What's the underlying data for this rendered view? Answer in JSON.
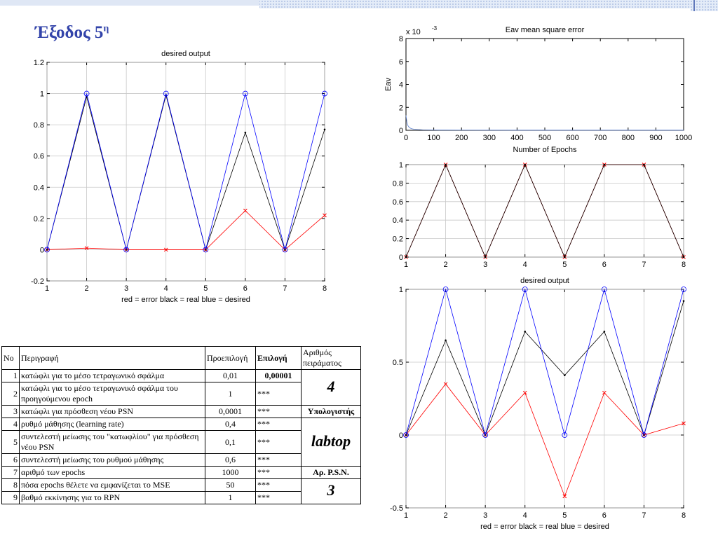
{
  "slide": {
    "title_main": "Έξοδος 5",
    "title_sup": "η"
  },
  "colors": {
    "error": "#ff0000",
    "real": "#000000",
    "desired": "#0000ff",
    "title": "#3344aa",
    "grid": "#c8c8c8",
    "mse_line": "#5a7fd0"
  },
  "chart_data": [
    {
      "type": "line",
      "title": "desired output",
      "xlabel": "red = error      black = real      blue = desired",
      "ylabel": "",
      "x": [
        1,
        2,
        3,
        4,
        5,
        6,
        7,
        8
      ],
      "xlim": [
        1,
        8
      ],
      "ylim": [
        -0.2,
        1.2
      ],
      "xticks": [
        "1",
        "2",
        "3",
        "4",
        "5",
        "6",
        "7",
        "8"
      ],
      "yticks": [
        "-0.2",
        "0",
        "0.2",
        "0.4",
        "0.6",
        "0.8",
        "1",
        "1.2"
      ],
      "grid": true,
      "series": [
        {
          "name": "error",
          "values": [
            0.0,
            0.01,
            0.0,
            0.0,
            0.0,
            0.25,
            0.0,
            0.22
          ]
        },
        {
          "name": "real",
          "values": [
            0.0,
            0.98,
            0.0,
            0.99,
            0.0,
            0.75,
            0.0,
            0.77
          ]
        },
        {
          "name": "desired",
          "values": [
            0,
            1,
            0,
            1,
            0,
            1,
            0,
            1
          ]
        }
      ]
    },
    {
      "type": "line",
      "title": "Eav mean square error",
      "xlabel": "Number of Epochs",
      "ylabel": "Eav",
      "multiplier": "x 10",
      "multiplier_exp": "-3",
      "xlim": [
        0,
        1000
      ],
      "ylim": [
        0,
        8
      ],
      "xticks": [
        "0",
        "100",
        "200",
        "300",
        "400",
        "500",
        "600",
        "700",
        "800",
        "900",
        "1000"
      ],
      "yticks": [
        "0",
        "2",
        "4",
        "6",
        "8"
      ],
      "grid": false,
      "series": [
        {
          "name": "Eav",
          "x": [
            0,
            3,
            6,
            10,
            15,
            20,
            30,
            45,
            60,
            80,
            120,
            200,
            400,
            1000
          ],
          "values": [
            1.3,
            0.75,
            0.45,
            0.3,
            0.2,
            0.14,
            0.09,
            0.06,
            0.04,
            0.03,
            0.02,
            0.015,
            0.01,
            0.01
          ]
        }
      ]
    },
    {
      "type": "line",
      "title": "",
      "xlabel": "",
      "ylabel": "",
      "x": [
        1,
        2,
        3,
        4,
        5,
        6,
        7,
        8
      ],
      "xlim": [
        1,
        8
      ],
      "ylim": [
        0,
        1
      ],
      "xticks": [
        "1",
        "2",
        "3",
        "4",
        "5",
        "6",
        "7",
        "8"
      ],
      "yticks": [
        "0",
        "0.2",
        "0.4",
        "0.6",
        "0.8",
        "1"
      ],
      "grid": true,
      "series": [
        {
          "name": "error",
          "values": [
            0,
            1,
            0,
            1,
            0,
            1,
            1,
            0
          ]
        },
        {
          "name": "real",
          "values": [
            0,
            1,
            0,
            1,
            0,
            1,
            1,
            0
          ]
        }
      ]
    },
    {
      "type": "line",
      "title": "desired output",
      "xlabel": "red = error      black = real      blue = desired",
      "ylabel": "",
      "x": [
        1,
        2,
        3,
        4,
        5,
        6,
        7,
        8
      ],
      "xlim": [
        1,
        8
      ],
      "ylim": [
        -0.5,
        1
      ],
      "xticks": [
        "1",
        "2",
        "3",
        "4",
        "5",
        "6",
        "7",
        "8"
      ],
      "yticks": [
        "-0.5",
        "0",
        "0.5",
        "1"
      ],
      "grid": true,
      "series": [
        {
          "name": "error",
          "values": [
            0.0,
            0.35,
            0.0,
            0.29,
            -0.42,
            0.29,
            0.0,
            0.08
          ]
        },
        {
          "name": "real",
          "values": [
            0.0,
            0.65,
            0.0,
            0.71,
            0.41,
            0.71,
            0.0,
            0.92
          ]
        },
        {
          "name": "desired",
          "values": [
            0,
            1,
            0,
            1,
            0,
            1,
            0,
            1
          ]
        }
      ]
    }
  ],
  "table": {
    "headers": [
      "No",
      "Περιγραφή",
      "Προεπιλογή",
      "Επιλογή",
      "Αριθμός πειράματος"
    ],
    "rows": [
      {
        "no": "1",
        "desc": "κατώφλι για το μέσο τετραγωνικό σφάλμα",
        "def": "0,01",
        "sel": "0,00001"
      },
      {
        "no": "2",
        "desc": "κατώφλι για το μέσο τετραγωνικό σφάλμα του προηγούμενου epoch",
        "def": "1",
        "sel": "***"
      },
      {
        "no": "3",
        "desc": "κατώφλι για πρόσθεση νέου PSN",
        "def": "0,0001",
        "sel": "***"
      },
      {
        "no": "4",
        "desc": "ρυθμό μάθησης (learning rate)",
        "def": "0,4",
        "sel": "***"
      },
      {
        "no": "5",
        "desc": "συντελεστή μείωσης του \"κατωφλίου\" για πρόσθεση νέου PSN",
        "def": "0,1",
        "sel": "***"
      },
      {
        "no": "6",
        "desc": "συντελεστή μείωσης του ρυθμού μάθησης",
        "def": "0,6",
        "sel": "***"
      },
      {
        "no": "7",
        "desc": "αριθμό των epochs",
        "def": "1000",
        "sel": "***"
      },
      {
        "no": "8",
        "desc": "πόσα epochs θέλετε να εμφανίζεται το MSE",
        "def": "50",
        "sel": "***"
      },
      {
        "no": "9",
        "desc": "βαθμό εκκίνησης για το RPN",
        "def": "1",
        "sel": "***"
      }
    ],
    "side": {
      "experiment_no": "4",
      "computer_label": "Υπολογιστής",
      "computer": "labtop",
      "psn_label": "Αρ. P.S.N.",
      "psn": "3"
    }
  }
}
